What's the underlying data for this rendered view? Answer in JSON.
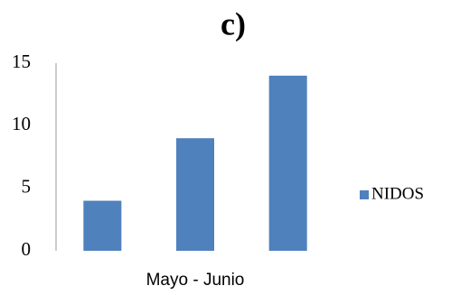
{
  "chart_data": {
    "type": "bar",
    "title": "c)",
    "x_label": "Mayo - Junio",
    "categories": [
      null,
      null,
      null
    ],
    "series": [
      {
        "name": "NIDOS",
        "color": "#4f81bd",
        "values": [
          4,
          9,
          14
        ]
      }
    ],
    "ylim": [
      0,
      15
    ],
    "yticks": [
      0,
      5,
      10,
      15
    ],
    "legend": "right"
  }
}
